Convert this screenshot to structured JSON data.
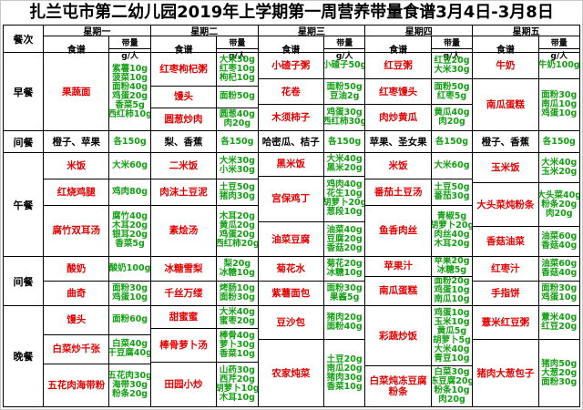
{
  "title": "扎兰屯市第二幼儿园2019年上学期第一周营养带量食谱3月4日-3月8日",
  "colors": {
    "food_name_red": "#e60000",
    "amount_green": "#12a012",
    "header_text": "#000000",
    "border": "#000000"
  },
  "table": {
    "corner_label": "餐次",
    "day_headers": [
      "星期一",
      "星期二",
      "星期三",
      "星期四",
      "星期五"
    ],
    "sub_headers": {
      "food": "食谱",
      "amount": "带量",
      "amount_unit": "g/人"
    },
    "sections": [
      {
        "meal": "早餐",
        "days": [
          [
            {
              "food": "果蔬面",
              "amounts": [
                "紫薯10g",
                "菠菜10g",
                "面粉40g",
                "鸡蛋20g",
                "香菜5g",
                "西红柿10g"
              ],
              "span": 3
            }
          ],
          [
            {
              "food": "红枣枸杞粥",
              "amounts": [
                "大米30g",
                "红枣10g",
                "枸杞10g"
              ]
            },
            {
              "food": "馒头",
              "amounts": [
                "面粉50g"
              ]
            },
            {
              "food": "圆葱炒肉",
              "amounts": [
                "圆葱40g",
                "肉20g"
              ]
            }
          ],
          [
            {
              "food": "小碴子粥",
              "amounts": [
                "小碴子50g"
              ]
            },
            {
              "food": "花卷",
              "amounts": [
                "面粉50g",
                "豆油2g"
              ]
            },
            {
              "food": "木须柿子",
              "amounts": [
                "鸡蛋30g",
                "西红柿30g"
              ]
            }
          ],
          [
            {
              "food": "红豆粥",
              "amounts": [
                "红豆20g",
                "大米30g"
              ]
            },
            {
              "food": "红枣馒头",
              "amounts": [
                "面粉50g",
                "红枣5g"
              ]
            },
            {
              "food": "肉炒黄瓜",
              "amounts": [
                "黄瓜40g",
                "肉20g"
              ]
            }
          ],
          [
            {
              "food": "牛奶",
              "amounts": [
                "牛奶100g"
              ]
            },
            {
              "food": "南瓜蛋糕",
              "amounts": [
                "面粉30g",
                "南瓜10g",
                "鸡蛋10g"
              ],
              "span": 2
            }
          ]
        ]
      },
      {
        "meal": "间餐",
        "plain_food": true,
        "days": [
          [
            {
              "food": "橙子、苹果",
              "amounts": [
                "各150g"
              ]
            }
          ],
          [
            {
              "food": "梨、香蕉",
              "amounts": [
                "各150g"
              ]
            }
          ],
          [
            {
              "food": "哈密瓜、桔子",
              "amounts": [
                "各150g"
              ]
            }
          ],
          [
            {
              "food": "苹果、圣女果",
              "amounts": [
                "各150g"
              ]
            }
          ],
          [
            {
              "food": "橙子、香蕉",
              "amounts": [
                "各150g"
              ]
            }
          ]
        ]
      },
      {
        "meal": "午餐",
        "days": [
          [
            {
              "food": "米饭",
              "amounts": [
                "大米60g"
              ]
            },
            {
              "food": "红烧鸡腿",
              "amounts": [
                "鸡肉80g"
              ]
            },
            {
              "food": "腐竹双耳汤",
              "amounts": [
                "腐竹40g",
                "木耳20g",
                "银耳20g",
                "香菜5g"
              ]
            }
          ],
          [
            {
              "food": "二米饭",
              "amounts": [
                "大米30g",
                "小米30g"
              ]
            },
            {
              "food": "肉沫土豆泥",
              "amounts": [
                "土豆50g",
                "猪肉30g"
              ]
            },
            {
              "food": "素烩汤",
              "amounts": [
                "木耳20g",
                "黄瓜20g",
                "鸡蛋20g",
                "西红柿20g"
              ]
            }
          ],
          [
            {
              "food": "黑米饭",
              "amounts": [
                "大米40g",
                "黑米20g"
              ]
            },
            {
              "food": "宫保鸡丁",
              "amounts": [
                "鸡肉40g",
                "花生10g",
                "胡萝卜20g",
                "葱段10g"
              ]
            },
            {
              "food": "油菜豆腐",
              "amounts": [
                "油菜40g",
                "豆腐20g",
                "香菇20g"
              ]
            }
          ],
          [
            {
              "food": "米饭",
              "amounts": [
                "大米60g"
              ]
            },
            {
              "food": "番茄土豆汤",
              "amounts": [
                "土豆50g",
                "番茄30g"
              ]
            },
            {
              "food": "鱼香肉丝",
              "amounts": [
                "青椒5g",
                "胡萝卜20g",
                "肉丝40g",
                "木耳20g"
              ]
            }
          ],
          [
            {
              "food": "玉米饭",
              "amounts": [
                "大米40g",
                "玉米20g"
              ]
            },
            {
              "food": "大头菜炖粉条",
              "amounts": [
                "大头菜40g",
                "粉条20g",
                "肉20g"
              ]
            },
            {
              "food": "香菇油菜",
              "amounts": [
                "油菜60g",
                "香菇40g"
              ]
            }
          ]
        ]
      },
      {
        "meal": "间餐",
        "days": [
          [
            {
              "food": "酸奶",
              "amounts": [
                "酸奶100g"
              ]
            },
            {
              "food": "曲奇",
              "amounts": [
                "面粉30g",
                "鸡蛋10g"
              ]
            }
          ],
          [
            {
              "food": "冰糖雪梨",
              "amounts": [
                "梨20g",
                "冰糖10g"
              ]
            },
            {
              "food": "千丝万缕",
              "amounts": [
                "烤肠10g",
                "面粉30g"
              ]
            }
          ],
          [
            {
              "food": "菊花水",
              "amounts": [
                "菊花20g",
                "冰糖10g"
              ]
            },
            {
              "food": "紫薯面包",
              "amounts": [
                "面粉30g",
                "果酱5g"
              ]
            }
          ],
          [
            {
              "food": "苹果汁",
              "amounts": [
                "苹果20g",
                "冰糖5g"
              ]
            },
            {
              "food": "南瓜蛋糕",
              "amounts": [
                "面粉20g",
                "鸡蛋10g",
                "南瓜10g"
              ]
            }
          ],
          [
            {
              "food": "红枣汁",
              "amounts": [
                "油菜60g",
                "香菇40g"
              ]
            },
            {
              "food": "手指饼",
              "amounts": [
                "面粉30g",
                "鸡蛋10g"
              ]
            }
          ]
        ]
      },
      {
        "meal": "晚餐",
        "days": [
          [
            {
              "food": "馒头",
              "amounts": [
                "面粉60g"
              ]
            },
            {
              "food": "白菜炒千张",
              "amounts": [
                "白菜40g",
                "干豆腐40g"
              ]
            },
            {
              "food": "五花肉海带粉",
              "amounts": [
                "五花肉30g",
                "海带30g",
                "粉条20g"
              ]
            }
          ],
          [
            {
              "food": "甜蜜蜜",
              "amounts": [
                "大米40g",
                "蜜枣20g"
              ]
            },
            {
              "food": "棒骨萝卜汤",
              "amounts": [
                "棒骨40g",
                "萝卜30g",
                "香菜10g"
              ]
            },
            {
              "food": "田园小炒",
              "amounts": [
                "山药30g",
                "西芹20g",
                "胡萝卜10g",
                "木耳10g"
              ]
            }
          ],
          [
            {
              "food": "豆沙包",
              "amounts": [
                "猪肉20g",
                "面粉40g"
              ]
            },
            {
              "food": "农家炖菜",
              "amounts": [
                "土豆20g",
                "南瓜20g",
                "猪肉30g",
                "香菜10g"
              ],
              "span": 2
            }
          ],
          [
            {
              "food": "彩蔬炒饭",
              "amounts": [
                "鸡蛋10g",
                "玉米10g",
                "黄瓜5g",
                "胡萝卜5g",
                "大米40g",
                "青豆10g"
              ]
            },
            {
              "food": "白菜炖冻豆腐粉条",
              "amounts": [
                "白菜30g",
                "冻豆腐20g",
                "粉条10g",
                "肉20g"
              ],
              "span": 2
            }
          ],
          [
            {
              "food": "薏米红豆粥",
              "amounts": [
                "薏米40g",
                "红豆20g"
              ]
            },
            {
              "food": "猪肉大葱包子",
              "amounts": [
                "猪肉50g",
                "大葱20g",
                "面粉30g"
              ],
              "span": 2
            }
          ]
        ]
      }
    ]
  }
}
